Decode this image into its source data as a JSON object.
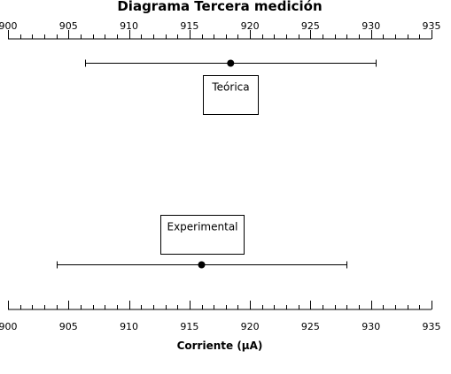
{
  "chart_data": {
    "type": "scatter",
    "title": "Diagrama Tercera  medición",
    "xlabel": "Corriente  (μA)",
    "xlim": [
      900,
      935
    ],
    "major_ticks": [
      900,
      905,
      910,
      915,
      920,
      925,
      930,
      935
    ],
    "tick_labels": [
      "900",
      "905",
      "910",
      "915",
      "920",
      "925",
      "930",
      "935"
    ],
    "minor_tick_step": 1,
    "axes": [
      "top",
      "bottom"
    ],
    "grid": false,
    "series": [
      {
        "name": "Teórica",
        "x": 918.4,
        "xmin": 906.4,
        "xmax": 930.4,
        "label_position": "below"
      },
      {
        "name": "Experimental",
        "x": 916.0,
        "xmin": 904.0,
        "xmax": 928.0,
        "label_position": "above"
      }
    ]
  }
}
